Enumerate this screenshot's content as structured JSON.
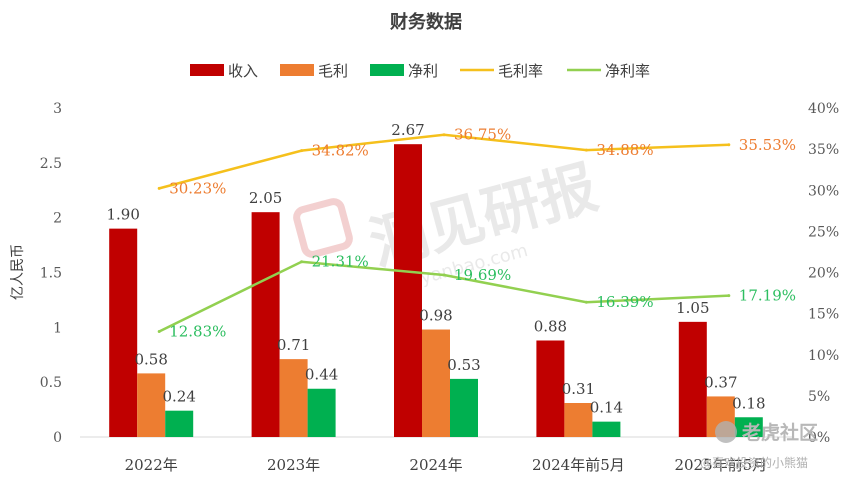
{
  "chart_data": {
    "type": "bar",
    "title": "财务数据",
    "xlabel": "",
    "ylabel": "亿人民币",
    "categories": [
      "2022年",
      "2023年",
      "2024年",
      "2024年前5月",
      "2025年前5月"
    ],
    "ylim": [
      0,
      3
    ],
    "y_ticks": [
      "0",
      "0.5",
      "1",
      "1.5",
      "2",
      "2.5",
      "3"
    ],
    "y2lim": [
      0,
      40
    ],
    "y2_ticks": [
      "0%",
      "5%",
      "10%",
      "15%",
      "20%",
      "25%",
      "30%",
      "35%",
      "40%"
    ],
    "grid": false,
    "legend_position": "top",
    "series": [
      {
        "name": "收入",
        "kind": "bar",
        "axis": "left",
        "color": "#C00000",
        "values": [
          1.9,
          2.05,
          2.67,
          0.88,
          1.05
        ],
        "labels": [
          "1.90",
          "2.05",
          "2.67",
          "0.88",
          "1.05"
        ]
      },
      {
        "name": "毛利",
        "kind": "bar",
        "axis": "left",
        "color": "#ED7D31",
        "values": [
          0.58,
          0.71,
          0.98,
          0.31,
          0.37
        ],
        "labels": [
          "0.58",
          "0.71",
          "0.98",
          "0.31",
          "0.37"
        ]
      },
      {
        "name": "净利",
        "kind": "bar",
        "axis": "left",
        "color": "#00B050",
        "values": [
          0.24,
          0.44,
          0.53,
          0.14,
          0.18
        ],
        "labels": [
          "0.24",
          "0.44",
          "0.53",
          "0.14",
          "0.18"
        ]
      },
      {
        "name": "毛利率",
        "kind": "line",
        "axis": "right",
        "color": "#F5C01C",
        "label_color": "#ED7D31",
        "values": [
          30.23,
          34.82,
          36.75,
          34.88,
          35.53
        ],
        "labels": [
          "30.23%",
          "34.82%",
          "36.75%",
          "34.88%",
          "35.53%"
        ]
      },
      {
        "name": "净利率",
        "kind": "line",
        "axis": "right",
        "color": "#92D050",
        "label_color": "#2DBE60",
        "values": [
          12.83,
          21.31,
          19.69,
          16.39,
          17.19
        ],
        "labels": [
          "12.83%",
          "21.31%",
          "19.69%",
          "16.39%",
          "17.19%"
        ]
      }
    ]
  },
  "watermarks": {
    "center_text": "洞见研报",
    "center_sub": "DJyanbao.com",
    "corner_text": "老虎社区",
    "corner_sub": "@喜欢投资的小熊猫"
  }
}
